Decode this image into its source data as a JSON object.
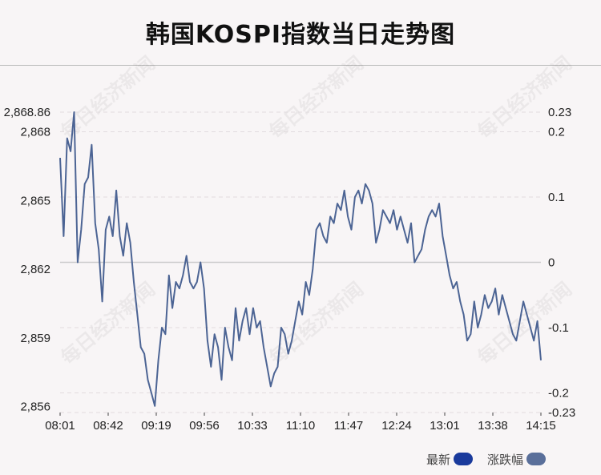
{
  "title": "韩国KOSPI指数当日走势图",
  "colors": {
    "latest": "#1a3a9c",
    "change": "#5a6f9a",
    "line": "#4c6494",
    "zero": "#cccccc",
    "grid": "#e2dcdf"
  },
  "watermark": "每日经济新闻",
  "chart_data": {
    "type": "line",
    "x_ticks": [
      "08:01",
      "08:42",
      "09:19",
      "09:56",
      "10:33",
      "11:10",
      "11:47",
      "12:24",
      "13:01",
      "13:38",
      "14:15"
    ],
    "left_axis": {
      "ticks": [
        "2,868.86",
        "2,868",
        "2,865",
        "2,862",
        "2,859",
        "2,856"
      ],
      "tick_values": [
        2868.86,
        2868,
        2865,
        2862,
        2859,
        2856
      ],
      "range": [
        2855.74,
        2868.86
      ]
    },
    "right_axis": {
      "ticks": [
        "0.23",
        "0.2",
        "0.1",
        "0",
        "-0.1",
        "-0.2",
        "-0.23"
      ],
      "tick_values": [
        0.23,
        0.2,
        0.1,
        0,
        -0.1,
        -0.2,
        -0.23
      ],
      "range": [
        -0.23,
        0.23
      ]
    },
    "reference_close": 2862.3,
    "legend": [
      {
        "name": "最新",
        "color": "#1a3a9c"
      },
      {
        "name": "涨跌幅",
        "color": "#5a6f9a"
      }
    ],
    "series": [
      {
        "name": "涨跌幅",
        "x_range": [
          "08:01",
          "14:15"
        ],
        "y_unit": "%",
        "values": [
          0.16,
          0.04,
          0.19,
          0.17,
          0.23,
          0.0,
          0.05,
          0.12,
          0.13,
          0.18,
          0.06,
          0.02,
          -0.06,
          0.05,
          0.07,
          0.04,
          0.11,
          0.04,
          0.01,
          0.06,
          0.03,
          -0.03,
          -0.08,
          -0.13,
          -0.14,
          -0.18,
          -0.2,
          -0.22,
          -0.15,
          -0.1,
          -0.11,
          -0.02,
          -0.07,
          -0.03,
          -0.04,
          -0.02,
          0.01,
          -0.03,
          -0.04,
          -0.03,
          0.0,
          -0.04,
          -0.12,
          -0.16,
          -0.11,
          -0.13,
          -0.18,
          -0.1,
          -0.13,
          -0.15,
          -0.07,
          -0.12,
          -0.09,
          -0.07,
          -0.11,
          -0.07,
          -0.1,
          -0.09,
          -0.13,
          -0.16,
          -0.19,
          -0.17,
          -0.16,
          -0.1,
          -0.11,
          -0.14,
          -0.12,
          -0.09,
          -0.06,
          -0.08,
          -0.03,
          -0.05,
          -0.01,
          0.05,
          0.06,
          0.04,
          0.03,
          0.07,
          0.06,
          0.09,
          0.08,
          0.11,
          0.07,
          0.05,
          0.1,
          0.11,
          0.09,
          0.12,
          0.11,
          0.09,
          0.03,
          0.05,
          0.08,
          0.07,
          0.06,
          0.08,
          0.05,
          0.07,
          0.05,
          0.03,
          0.06,
          0.0,
          0.01,
          0.02,
          0.05,
          0.07,
          0.08,
          0.07,
          0.09,
          0.04,
          0.01,
          -0.02,
          -0.04,
          -0.03,
          -0.06,
          -0.08,
          -0.12,
          -0.11,
          -0.06,
          -0.1,
          -0.08,
          -0.05,
          -0.07,
          -0.06,
          -0.04,
          -0.08,
          -0.05,
          -0.07,
          -0.09,
          -0.11,
          -0.12,
          -0.09,
          -0.06,
          -0.08,
          -0.1,
          -0.12,
          -0.09,
          -0.15
        ]
      }
    ]
  }
}
